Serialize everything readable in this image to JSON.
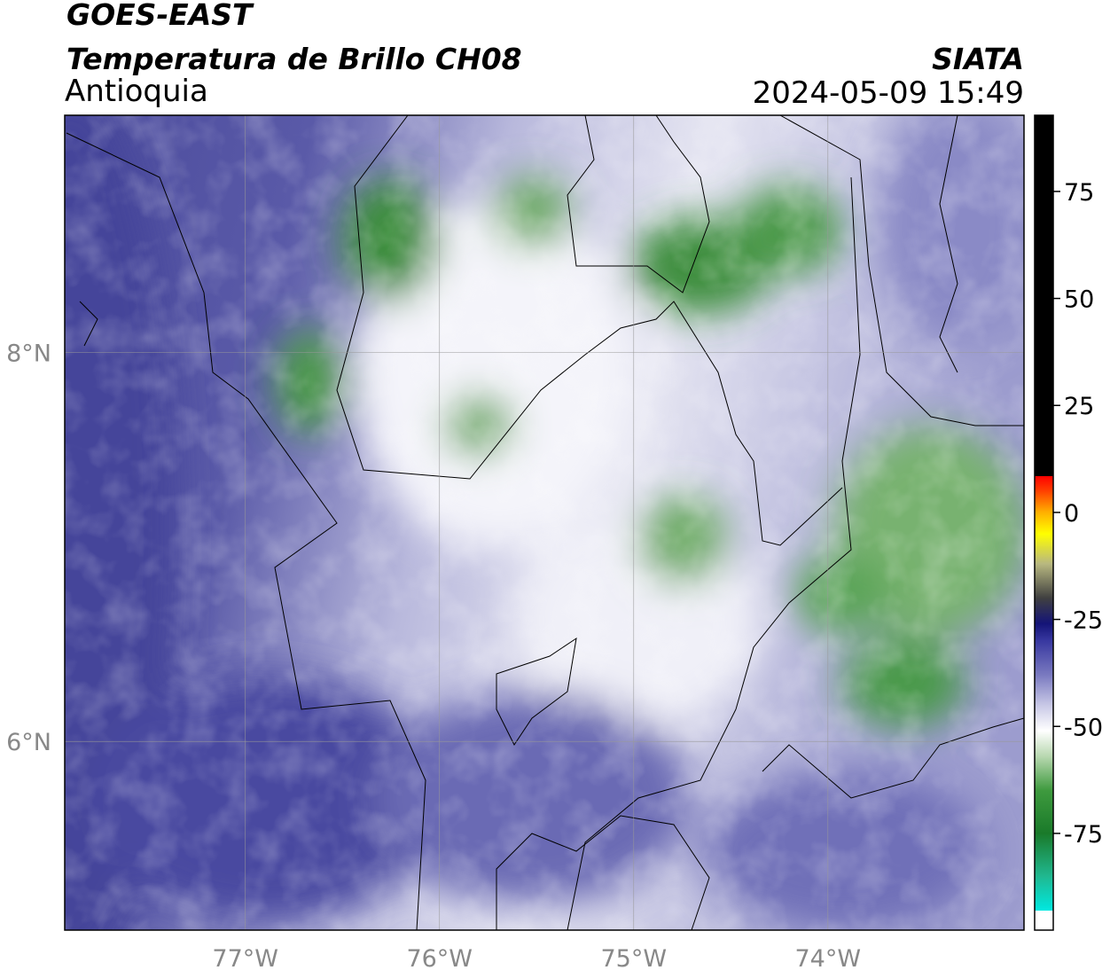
{
  "header": {
    "title": "GOES-EAST",
    "subtitle": "Temperatura de Brillo CH08",
    "region": "Antioquia",
    "source": "SIATA",
    "timestamp": "2024-05-09 15:49"
  },
  "map": {
    "xlim": [
      -77.93,
      -72.99
    ],
    "ylim": [
      5.03,
      9.22
    ],
    "xticks": [
      {
        "value": -77,
        "label": "77°W"
      },
      {
        "value": -76,
        "label": "76°W"
      },
      {
        "value": -75,
        "label": "75°W"
      },
      {
        "value": -74,
        "label": "74°W"
      }
    ],
    "yticks": [
      {
        "value": 6,
        "label": "6°N"
      },
      {
        "value": 8,
        "label": "8°N"
      }
    ],
    "grid": true
  },
  "colorbar": {
    "ylim": [
      -97.6,
      92.8
    ],
    "yticks": [
      -75,
      -50,
      -25,
      0,
      25,
      50,
      75
    ],
    "colorscale": [
      {
        "value": -97.6,
        "color": "#ffffff"
      },
      {
        "value": -93,
        "color": "#ffffff"
      },
      {
        "value": -93,
        "color": "#00e8e0"
      },
      {
        "value": -85,
        "color": "#20b890"
      },
      {
        "value": -75,
        "color": "#1a7a2a"
      },
      {
        "value": -65,
        "color": "#3e9a3e"
      },
      {
        "value": -57,
        "color": "#b8d8b0"
      },
      {
        "value": -51,
        "color": "#ffffff"
      },
      {
        "value": -45,
        "color": "#c8c8e6"
      },
      {
        "value": -38,
        "color": "#7a7ac0"
      },
      {
        "value": -30,
        "color": "#3838a0"
      },
      {
        "value": -26,
        "color": "#141478"
      },
      {
        "value": -20,
        "color": "#404040"
      },
      {
        "value": -12,
        "color": "#b8b880"
      },
      {
        "value": -5,
        "color": "#ffff00"
      },
      {
        "value": 0,
        "color": "#ffb000"
      },
      {
        "value": 5,
        "color": "#ff4000"
      },
      {
        "value": 8.5,
        "color": "#ff0000"
      },
      {
        "value": 8.5,
        "color": "#000000"
      },
      {
        "value": 92.8,
        "color": "#000000"
      }
    ]
  }
}
